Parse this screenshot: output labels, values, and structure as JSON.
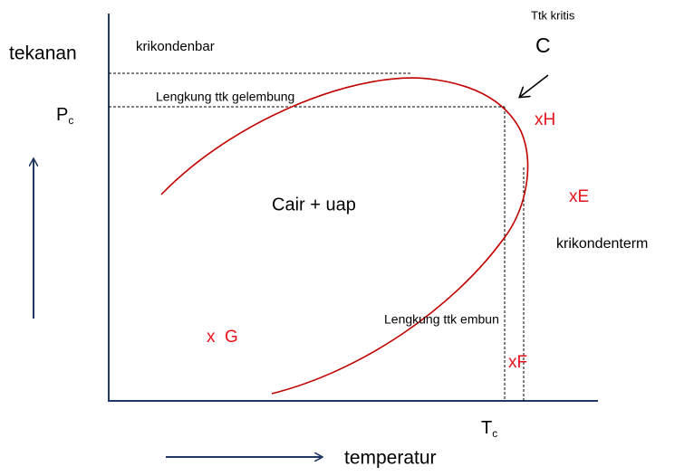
{
  "axis_label_y": "tekanan",
  "axis_label_x": "temperatur",
  "krikondenbar": "krikondenbar",
  "krikondenterm": "krikondenterm",
  "critical_point": {
    "caption": "Ttk kritis",
    "letter": "C"
  },
  "pc": {
    "main": "P",
    "sub": "c"
  },
  "tc": {
    "main": "T",
    "sub": "c"
  },
  "bubble_curve": "Lengkung ttk gelembung",
  "dew_curve": "Lengkung ttk embun",
  "region": "Cair + uap",
  "points": [
    "xH",
    "xE",
    "xF",
    "x  G"
  ]
}
